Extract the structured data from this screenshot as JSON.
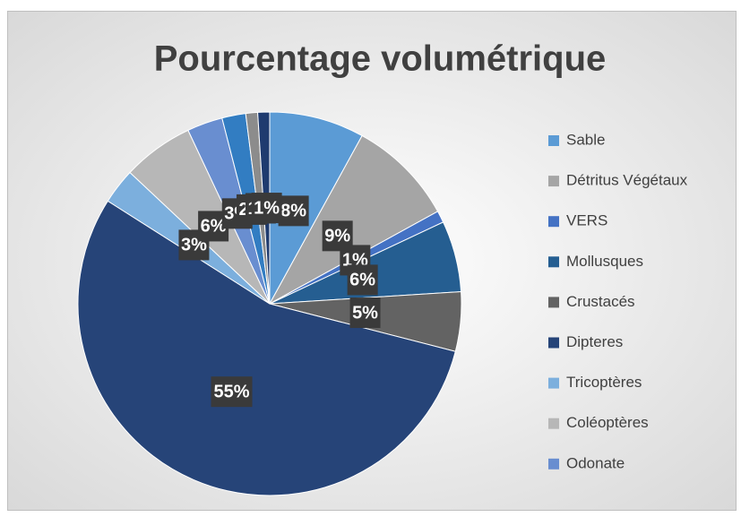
{
  "chart_data": {
    "type": "pie",
    "title": "Pourcentage volumétrique",
    "categories": [
      "Sable",
      "Détritus Végétaux",
      "VERS",
      "Mollusques",
      "Crustacés",
      "Dipteres",
      "Tricoptères",
      "Coléoptères",
      "Odonate",
      null,
      null,
      null
    ],
    "values": [
      8,
      9,
      1,
      6,
      5,
      55,
      3,
      6,
      3,
      2,
      1,
      1
    ],
    "value_labels": [
      "8%",
      "9%",
      "1%",
      "6%",
      "5%",
      "55%",
      "3%",
      "6%",
      "3%",
      "2%",
      "1%",
      "1%"
    ],
    "colors": [
      "#5b9bd5",
      "#a5a5a5",
      "#4472c4",
      "#255e91",
      "#636363",
      "#264478",
      "#7cafdd",
      "#b7b7b7",
      "#698ed0",
      "#327dc2",
      "#8c8c8c",
      "#1f3b6f"
    ],
    "legend": "right"
  }
}
